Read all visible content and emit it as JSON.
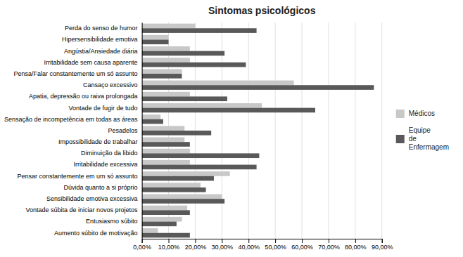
{
  "chart_data": {
    "type": "bar",
    "orientation": "horizontal",
    "title": "Sintomas psicológicos",
    "categories": [
      "Perda do senso de humor",
      "Hipersensibilidade emotiva",
      "Angústia/Ansiedade diária",
      "Irritabilidade sem causa aparente",
      "Pensa/Falar constantemente um só assunto",
      "Cansaço excessivo",
      "Apatia, depressão ou raiva prolongada",
      "Vontade de fugir de tudo",
      "Sensação de incompetência em todas as áreas",
      "Pesadelos",
      "Impossibilidade de trabalhar",
      "Diminuição da libido",
      "Irritabilidade excessiva",
      "Pensar constantemente em um só assunto",
      "Dúvida quanto a si próprio",
      "Sensibilidade emotiva excessiva",
      "Vontade súbita de iniciar novos projetos",
      "Entusiasmo súbito",
      "Aumento súbito de motivação"
    ],
    "series": [
      {
        "name": "Médicos",
        "color": "#c8c8c8",
        "values": [
          0.2,
          0.1,
          0.18,
          0.18,
          0.15,
          0.57,
          0.18,
          0.45,
          0.07,
          0.16,
          0.16,
          0.18,
          0.18,
          0.33,
          0.22,
          0.3,
          0.17,
          0.15,
          0.06
        ]
      },
      {
        "name": "Equipe\nde\nEnfermagem",
        "color": "#595959",
        "values": [
          0.43,
          0.1,
          0.31,
          0.39,
          0.15,
          0.87,
          0.32,
          0.65,
          0.08,
          0.26,
          0.18,
          0.44,
          0.43,
          0.27,
          0.24,
          0.31,
          0.18,
          0.13,
          0.18
        ]
      }
    ],
    "xlim": [
      0.0,
      0.9
    ],
    "xticks": [
      {
        "value": 0.0,
        "label": "0,00%"
      },
      {
        "value": 0.1,
        "label": "10,00%"
      },
      {
        "value": 0.2,
        "label": "20,00%"
      },
      {
        "value": 0.3,
        "label": "30,00%"
      },
      {
        "value": 0.4,
        "label": "40,00%"
      },
      {
        "value": 0.5,
        "label": "50,00%"
      },
      {
        "value": 0.6,
        "label": "60,00%"
      },
      {
        "value": 0.7,
        "label": "70,00%"
      },
      {
        "value": 0.8,
        "label": "80,00%"
      },
      {
        "value": 0.9,
        "label": "90,00%"
      }
    ],
    "grid": true,
    "legend": "right"
  }
}
